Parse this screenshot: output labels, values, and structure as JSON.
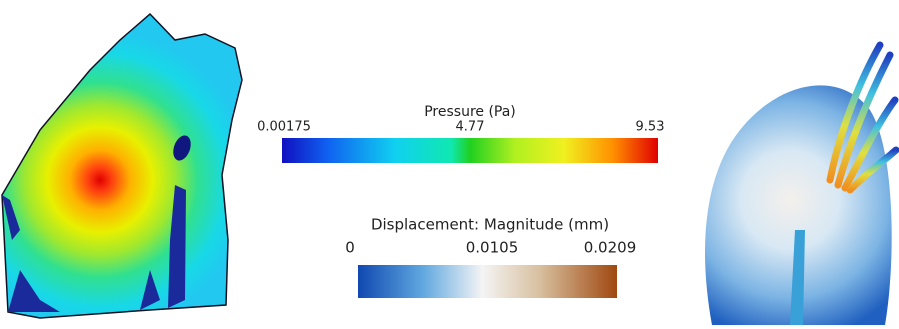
{
  "pressure_legend": {
    "title": "Pressure (Pa)",
    "ticks": [
      "0.00175",
      "4.77",
      "9.53"
    ]
  },
  "displacement_legend": {
    "title": "Displacement: Magnitude (mm)",
    "ticks": [
      "0",
      "0.0105",
      "0.0209"
    ]
  }
}
